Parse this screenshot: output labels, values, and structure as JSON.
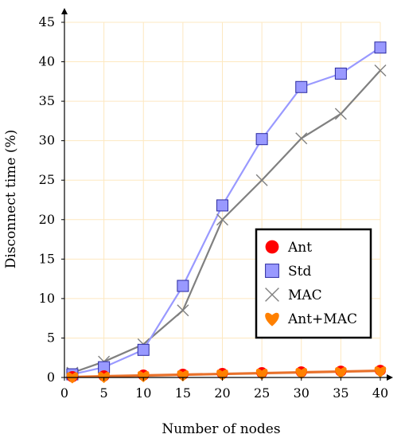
{
  "chart_data": {
    "type": "line",
    "title": "",
    "xlabel": "Number of nodes",
    "ylabel": "Disconnect time (%)",
    "xlim": [
      0,
      40
    ],
    "ylim": [
      0,
      45
    ],
    "x_ticks": [
      0,
      5,
      10,
      15,
      20,
      25,
      30,
      35,
      40
    ],
    "y_ticks": [
      0,
      5,
      10,
      15,
      20,
      25,
      30,
      35,
      40,
      45
    ],
    "grid": true,
    "legend_position": "lower-right",
    "series": [
      {
        "name": "Ant",
        "marker": "circle",
        "color": "#ff0000",
        "line_color": "#e8702a",
        "x": [
          1,
          5,
          10,
          15,
          20,
          25,
          30,
          35,
          40
        ],
        "values": [
          0.1,
          0.2,
          0.3,
          0.4,
          0.5,
          0.6,
          0.7,
          0.8,
          0.9
        ]
      },
      {
        "name": "Std",
        "marker": "square",
        "color": "#9999ff",
        "line_color": "#9999ff",
        "x": [
          1,
          5,
          10,
          15,
          20,
          25,
          30,
          35,
          40
        ],
        "values": [
          0.4,
          1.3,
          3.5,
          11.6,
          21.8,
          30.2,
          36.8,
          38.5,
          41.8
        ]
      },
      {
        "name": "MAC",
        "marker": "cross",
        "color": "#808080",
        "line_color": "#808080",
        "x": [
          1,
          5,
          10,
          15,
          20,
          25,
          30,
          35,
          40
        ],
        "values": [
          0.6,
          2.0,
          4.2,
          8.5,
          20.0,
          25.0,
          30.3,
          33.4,
          38.9
        ]
      },
      {
        "name": "Ant+MAC",
        "marker": "heart",
        "color": "#ff8000",
        "line_color": "#e8702a",
        "x": [
          1,
          5,
          10,
          15,
          20,
          25,
          30,
          35,
          40
        ],
        "values": [
          0.05,
          0.1,
          0.2,
          0.3,
          0.4,
          0.5,
          0.6,
          0.7,
          0.8
        ]
      }
    ],
    "colors": {
      "grid": "#fde8c0",
      "axis": "#000000"
    }
  }
}
